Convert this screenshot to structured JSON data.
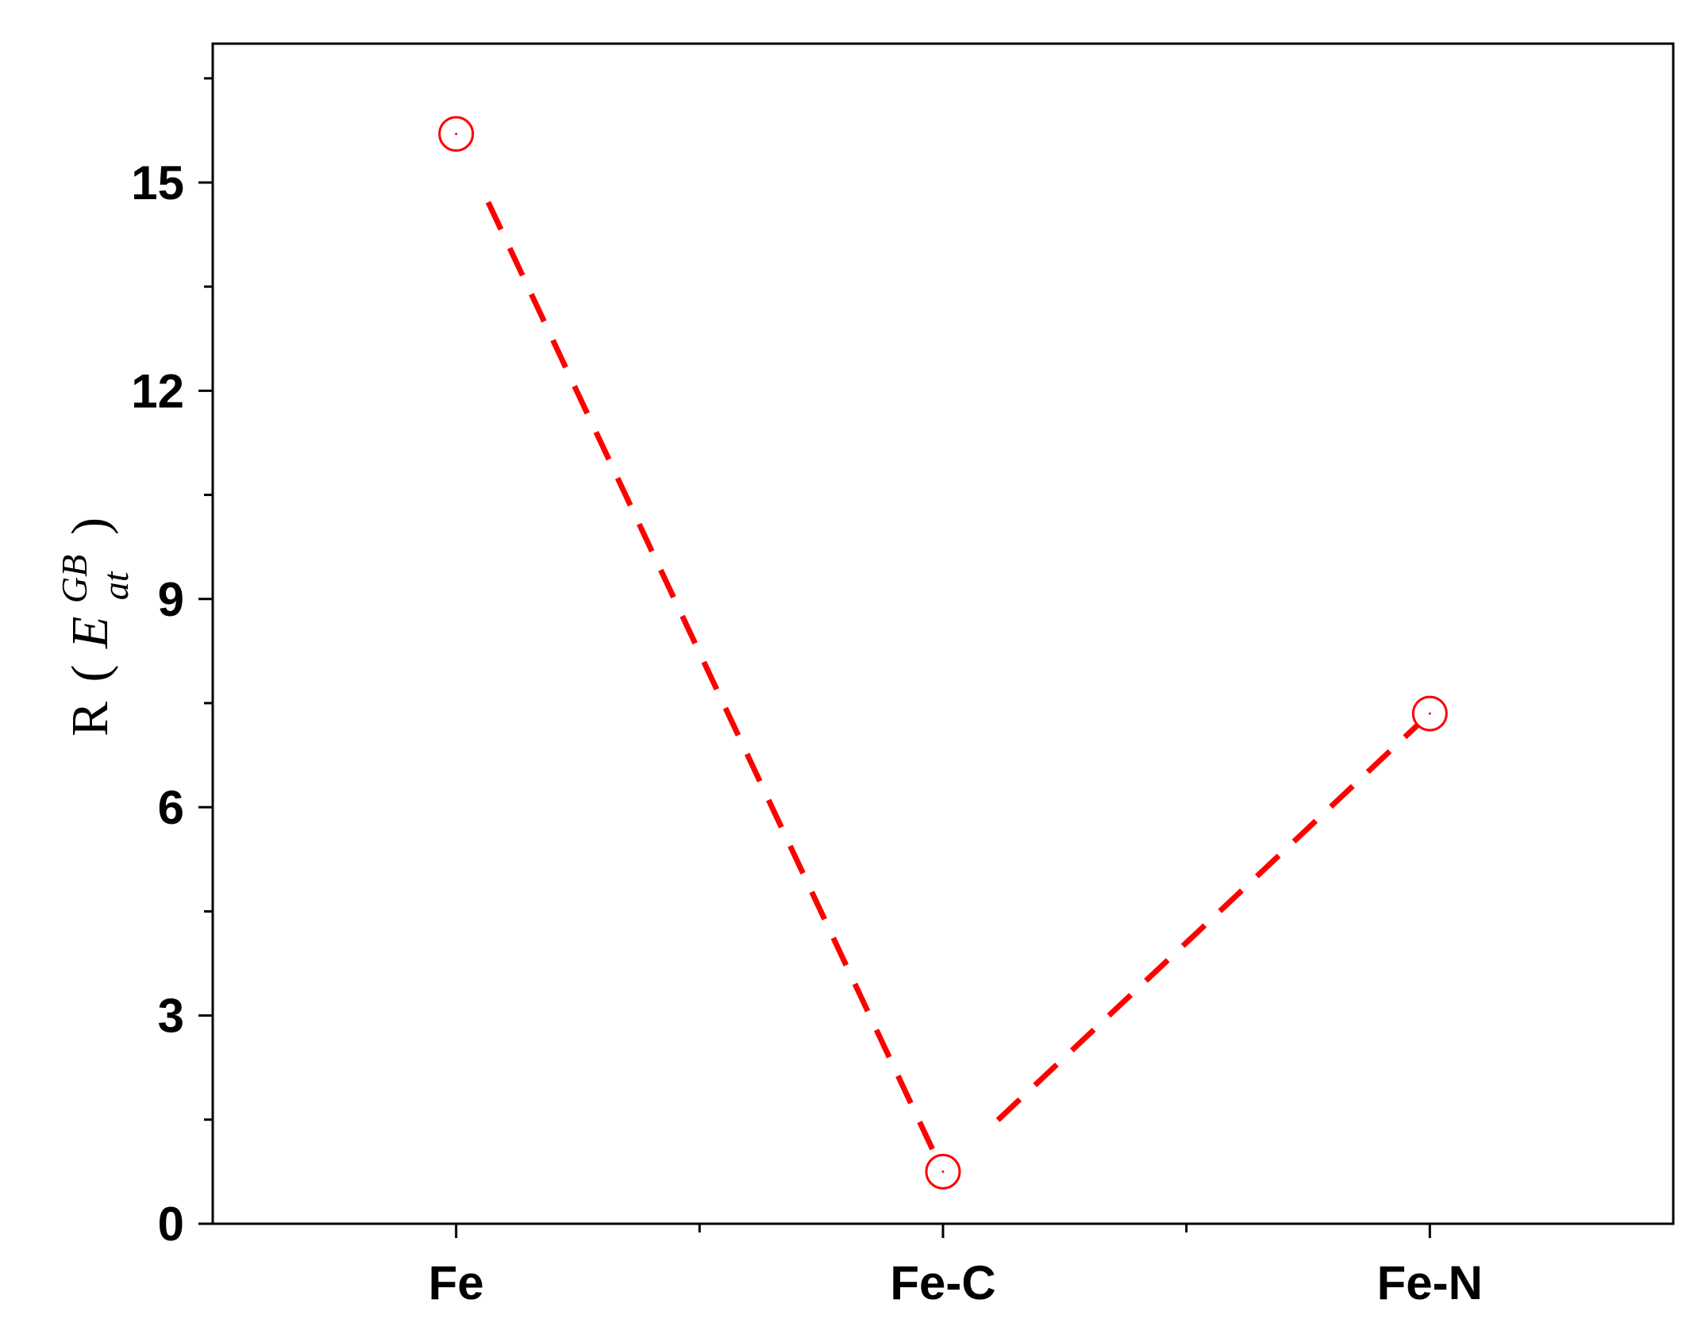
{
  "chart_data": {
    "type": "line",
    "categories": [
      "Fe",
      "Fe-C",
      "Fe-N"
    ],
    "series": [
      {
        "values": [
          15.7,
          0.75,
          7.35
        ],
        "color": "#ff0000",
        "marker": "open-circle",
        "line_style": "dashed"
      }
    ],
    "ylabel": {
      "prefix": "R",
      "open": "(",
      "base": "E",
      "superscript": "GB",
      "subscript": "at",
      "close": ")"
    },
    "xlabel": "",
    "title": "",
    "ylim": [
      0,
      17
    ],
    "yticks": [
      0,
      3,
      6,
      9,
      12,
      15
    ],
    "minor_ytick_step": 1.5,
    "grid": false,
    "legend": "none",
    "axis_color": "#000000"
  }
}
